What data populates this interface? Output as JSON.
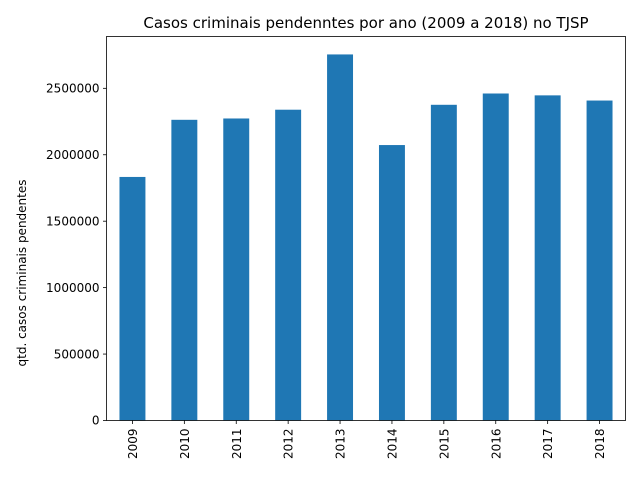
{
  "chart_data": {
    "type": "bar",
    "title": "Casos criminais pendenntes por ano (2009 a 2018) no TJSP",
    "xlabel": "",
    "ylabel": "qtd. casos criminais pendentes",
    "categories": [
      "2009",
      "2010",
      "2011",
      "2012",
      "2013",
      "2014",
      "2015",
      "2016",
      "2017",
      "2018"
    ],
    "values": [
      1833000,
      2263000,
      2273000,
      2339000,
      2755000,
      2073000,
      2376000,
      2461000,
      2447000,
      2408000
    ],
    "ylim": [
      0,
      2890000
    ],
    "yticks": [
      0,
      500000,
      1000000,
      1500000,
      2000000,
      2500000
    ],
    "ytick_labels": [
      "0",
      "500000",
      "1000000",
      "1500000",
      "2000000",
      "2500000"
    ],
    "bar_color": "#1f77b4",
    "grid": false,
    "legend": "none"
  }
}
